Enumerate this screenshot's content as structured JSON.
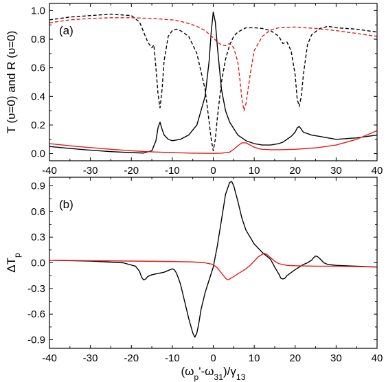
{
  "chart_data": [
    {
      "type": "line",
      "panel_label": "(a)",
      "xlabel": "",
      "ylabel": "T (υ=0) and R (υ=0)",
      "xlim": [
        -40,
        40
      ],
      "ylim": [
        -0.05,
        1.05
      ],
      "xticks": [
        -40,
        -30,
        -20,
        -10,
        0,
        10,
        20,
        30,
        40
      ],
      "xtick_labels": [
        "-40",
        "-30",
        "-20",
        "-10",
        "0",
        "10",
        "20",
        "30",
        "40"
      ],
      "yticks": [
        0.0,
        0.2,
        0.4,
        0.6,
        0.8,
        1.0
      ],
      "ytick_labels": [
        "0.0",
        "0.2",
        "0.4",
        "0.6",
        "0.8",
        "1.0"
      ],
      "grid": false,
      "legend": "none",
      "series": [
        {
          "color": "#000000",
          "dash": "solid",
          "x": [
            -40,
            -35,
            -30,
            -25,
            -20,
            -17,
            -15,
            -14,
            -13.5,
            -13,
            -12.5,
            -12,
            -11,
            -10,
            -8,
            -6,
            -4,
            -2,
            -1,
            -0.5,
            0,
            0.5,
            1,
            2,
            3,
            4,
            6,
            8,
            10,
            12,
            14,
            16,
            17,
            18,
            19,
            20,
            20.5,
            21,
            21.5,
            22,
            24,
            26,
            28,
            30,
            35,
            40
          ],
          "y": [
            0.05,
            0.036,
            0.024,
            0.014,
            0.007,
            0.004,
            0.02,
            0.09,
            0.18,
            0.22,
            0.17,
            0.13,
            0.1,
            0.09,
            0.1,
            0.13,
            0.2,
            0.4,
            0.65,
            0.85,
            0.99,
            0.92,
            0.75,
            0.45,
            0.3,
            0.22,
            0.13,
            0.09,
            0.07,
            0.06,
            0.06,
            0.07,
            0.08,
            0.1,
            0.12,
            0.15,
            0.18,
            0.19,
            0.17,
            0.15,
            0.13,
            0.12,
            0.11,
            0.1,
            0.11,
            0.13
          ]
        },
        {
          "color": "#e31a1c",
          "dash": "solid",
          "x": [
            -40,
            -35,
            -30,
            -25,
            -20,
            -15,
            -10,
            -5,
            0,
            2,
            4,
            5,
            6,
            7,
            8,
            9,
            10,
            11,
            12,
            14,
            16,
            20,
            25,
            30,
            35,
            40
          ],
          "y": [
            0.07,
            0.055,
            0.042,
            0.03,
            0.02,
            0.012,
            0.007,
            0.003,
            0.002,
            0.003,
            0.01,
            0.03,
            0.055,
            0.075,
            0.075,
            0.06,
            0.045,
            0.035,
            0.03,
            0.027,
            0.027,
            0.03,
            0.04,
            0.06,
            0.1,
            0.16
          ]
        },
        {
          "color": "#000000",
          "dash": "dashed",
          "x": [
            -40,
            -35,
            -30,
            -25,
            -20,
            -18,
            -17,
            -16,
            -15,
            -14.5,
            -14,
            -13.5,
            -13,
            -12.5,
            -12,
            -11,
            -10,
            -9,
            -8,
            -6,
            -4,
            -2,
            -1,
            -0.5,
            0,
            0.5,
            1,
            2,
            3,
            4,
            5,
            6,
            8,
            10,
            12,
            14,
            16,
            17,
            18,
            19,
            20,
            20.5,
            21,
            21.5,
            22,
            23,
            24,
            26,
            28,
            30,
            35,
            40
          ],
          "y": [
            0.935,
            0.955,
            0.965,
            0.975,
            0.965,
            0.92,
            0.85,
            0.78,
            0.74,
            0.76,
            0.6,
            0.42,
            0.32,
            0.45,
            0.65,
            0.82,
            0.86,
            0.87,
            0.86,
            0.82,
            0.7,
            0.45,
            0.22,
            0.1,
            0.02,
            0.1,
            0.25,
            0.5,
            0.66,
            0.76,
            0.82,
            0.85,
            0.88,
            0.88,
            0.875,
            0.86,
            0.82,
            0.77,
            0.78,
            0.72,
            0.55,
            0.38,
            0.33,
            0.4,
            0.55,
            0.76,
            0.83,
            0.875,
            0.89,
            0.88,
            0.87,
            0.85
          ]
        },
        {
          "color": "#e31a1c",
          "dash": "dashed",
          "x": [
            -40,
            -35,
            -30,
            -25,
            -20,
            -15,
            -10,
            -8,
            -6,
            -4,
            -2,
            0,
            1,
            2,
            3,
            4,
            5,
            6,
            6.5,
            7,
            7.5,
            8,
            9,
            10,
            12,
            14,
            16,
            20,
            25,
            30,
            35,
            40
          ],
          "y": [
            0.915,
            0.935,
            0.945,
            0.95,
            0.95,
            0.945,
            0.935,
            0.925,
            0.91,
            0.89,
            0.86,
            0.81,
            0.78,
            0.76,
            0.755,
            0.77,
            0.74,
            0.64,
            0.52,
            0.38,
            0.3,
            0.35,
            0.55,
            0.72,
            0.82,
            0.865,
            0.88,
            0.885,
            0.875,
            0.86,
            0.84,
            0.82
          ]
        }
      ]
    },
    {
      "type": "line",
      "panel_label": "(b)",
      "xlabel": "(ωp'-ω31)/γ13",
      "ylabel": "ΔTp",
      "xlim": [
        -40,
        40
      ],
      "ylim": [
        -1.0,
        1.0
      ],
      "xticks": [
        -40,
        -30,
        -20,
        -10,
        0,
        10,
        20,
        30,
        40
      ],
      "xtick_labels": [
        "-40",
        "-30",
        "-20",
        "-10",
        "0",
        "10",
        "20",
        "30",
        "40"
      ],
      "yticks": [
        -0.9,
        -0.6,
        -0.3,
        0.0,
        0.3,
        0.6,
        0.9
      ],
      "ytick_labels": [
        "-0.9",
        "-0.6",
        "-0.3",
        "0.0",
        "0.3",
        "0.6",
        "0.9"
      ],
      "grid": false,
      "legend": "none",
      "series": [
        {
          "color": "#000000",
          "dash": "solid",
          "x": [
            -40,
            -30,
            -22,
            -19,
            -18,
            -17.5,
            -17,
            -16.5,
            -16,
            -15,
            -14,
            -12,
            -11,
            -10,
            -9.5,
            -9,
            -8.5,
            -8,
            -7,
            -6,
            -5,
            -4.5,
            -4,
            -3.5,
            -3,
            -2,
            -1,
            0,
            1,
            2,
            3,
            4,
            4.5,
            5,
            6,
            7,
            8,
            10,
            12,
            14,
            15,
            16,
            16.5,
            17,
            17.5,
            18,
            20,
            22,
            23,
            24,
            24.5,
            25,
            25.5,
            26,
            27,
            28,
            30,
            35,
            40
          ],
          "y": [
            0.03,
            0.02,
            0.0,
            -0.04,
            -0.1,
            -0.17,
            -0.2,
            -0.19,
            -0.16,
            -0.14,
            -0.13,
            -0.11,
            -0.09,
            -0.07,
            -0.08,
            -0.12,
            -0.18,
            -0.25,
            -0.45,
            -0.65,
            -0.82,
            -0.87,
            -0.82,
            -0.7,
            -0.55,
            -0.35,
            -0.2,
            -0.05,
            0.2,
            0.5,
            0.8,
            0.94,
            0.95,
            0.9,
            0.72,
            0.52,
            0.38,
            0.22,
            0.12,
            0.04,
            -0.05,
            -0.13,
            -0.18,
            -0.19,
            -0.18,
            -0.15,
            -0.08,
            -0.02,
            0.0,
            0.03,
            0.06,
            0.08,
            0.07,
            0.05,
            0.0,
            -0.02,
            -0.03,
            -0.04,
            -0.05
          ]
        },
        {
          "color": "#e31a1c",
          "dash": "solid",
          "x": [
            -40,
            -30,
            -20,
            -10,
            -5,
            -2,
            0,
            1,
            2,
            3,
            3.5,
            4,
            5,
            6,
            7,
            8,
            9,
            10,
            11,
            12,
            12.5,
            13,
            14,
            15,
            16,
            18,
            20,
            25,
            30,
            35,
            40
          ],
          "y": [
            0.03,
            0.025,
            0.02,
            0.015,
            0.01,
            0.0,
            -0.02,
            -0.06,
            -0.12,
            -0.18,
            -0.2,
            -0.19,
            -0.16,
            -0.13,
            -0.1,
            -0.07,
            -0.03,
            0.02,
            0.07,
            0.1,
            0.11,
            0.1,
            0.06,
            0.02,
            -0.01,
            -0.03,
            -0.035,
            -0.04,
            -0.04,
            -0.045,
            -0.05
          ]
        }
      ]
    }
  ]
}
